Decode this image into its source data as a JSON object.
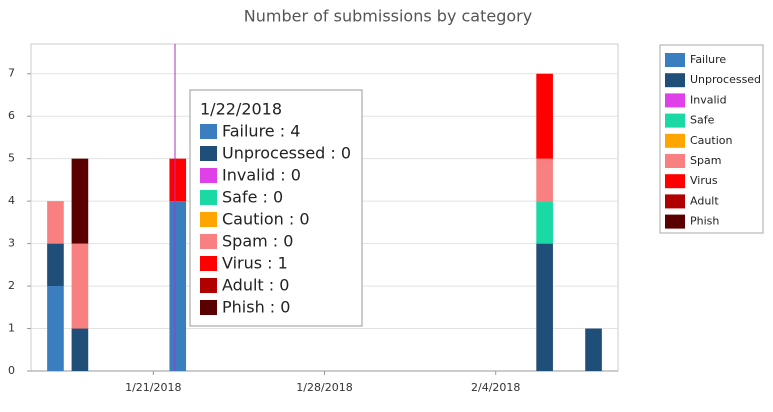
{
  "chart_data": {
    "type": "stacked-bar",
    "title": "Number of submissions by category",
    "x": [
      "1/17/2018",
      "1/18/2018",
      "1/22/2018",
      "2/6/2018",
      "2/8/2018"
    ],
    "xlim": [
      "1/16/2018",
      "2/9/2018"
    ],
    "xticks": [
      "1/21/2018",
      "1/28/2018",
      "2/4/2018"
    ],
    "ylim": [
      0,
      7.7
    ],
    "yticks": [
      0,
      1,
      2,
      3,
      4,
      5,
      6,
      7
    ],
    "grid": true,
    "legend": "right",
    "series": [
      {
        "name": "Failure",
        "color": "#3a7ebf",
        "values": [
          2,
          0,
          4,
          0,
          0
        ]
      },
      {
        "name": "Unprocessed",
        "color": "#1f4e79",
        "values": [
          1,
          1,
          0,
          3,
          1
        ]
      },
      {
        "name": "Invalid",
        "color": "#e040e8",
        "values": [
          0,
          0,
          0,
          0,
          0
        ]
      },
      {
        "name": "Safe",
        "color": "#1ad9a4",
        "values": [
          0,
          0,
          0,
          1,
          0
        ]
      },
      {
        "name": "Caution",
        "color": "#ffa500",
        "values": [
          0,
          0,
          0,
          0,
          0
        ]
      },
      {
        "name": "Spam",
        "color": "#f88080",
        "values": [
          1,
          2,
          0,
          1,
          0
        ]
      },
      {
        "name": "Virus",
        "color": "#ff0000",
        "values": [
          0,
          0,
          1,
          2,
          0
        ]
      },
      {
        "name": "Adult",
        "color": "#b00000",
        "values": [
          0,
          0,
          0,
          0,
          0
        ]
      },
      {
        "name": "Phish",
        "color": "#5a0000",
        "values": [
          0,
          2,
          0,
          0,
          0
        ]
      }
    ],
    "tooltip": {
      "title": "1/22/2018",
      "lines": [
        "Failure : 4",
        "Unprocessed : 0",
        "Invalid : 0",
        "Safe : 0",
        "Caution : 0",
        "Spam : 0",
        "Virus : 1",
        "Adult : 0",
        "Phish : 0"
      ]
    }
  }
}
